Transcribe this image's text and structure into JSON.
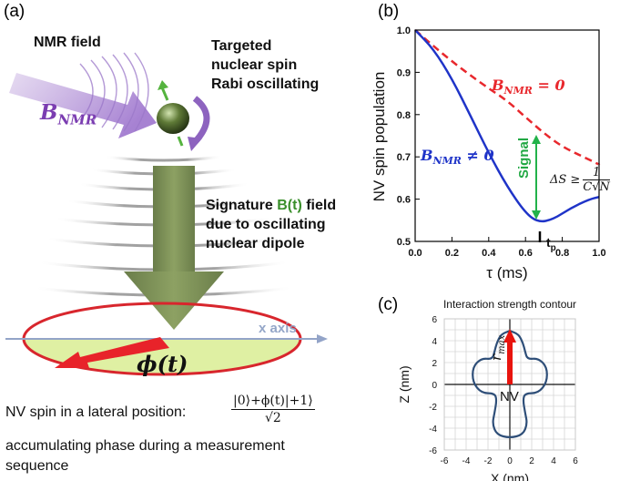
{
  "panels": {
    "a": {
      "label": "(a)",
      "nmr_field": "NMR field",
      "b_nmr": "B",
      "b_nmr_sub": "NMR",
      "target_line1": "Targeted",
      "target_line2": "nuclear spin",
      "target_line3": "Rabi oscillating",
      "sig_line1_pre": "Signature ",
      "sig_line1_b": "B(t)",
      "sig_line1_post": " field",
      "sig_line2": "due to oscillating",
      "sig_line3": "nuclear dipole",
      "x_axis": "x axis",
      "phase": "ϕ(t)",
      "caption_line1": "NV spin  in a lateral position:",
      "state_formula": "|0⟩+ϕ(t)|+1⟩",
      "state_denom": "√2",
      "caption_line2": "accumulating phase  during a measurement",
      "caption_line3": "sequence"
    },
    "b": {
      "label": "(b)",
      "label_zero": "B",
      "label_zero_sub": "NMR",
      "label_zero_rel": " = 0",
      "label_nonzero": "B",
      "label_nonzero_sub": "NMR",
      "label_nonzero_rel": " ≠ 0",
      "signal": "Signal",
      "delta_s": "ΔS ≥",
      "delta_num": "1",
      "delta_den": "C√N",
      "tp": "t",
      "tp_sub": "p"
    },
    "c": {
      "label": "(c)",
      "r_max": "r",
      "r_max_sub": "max",
      "nv": "NV"
    }
  },
  "chart_data": [
    {
      "type": "line",
      "xlabel": "τ (ms)",
      "ylabel": "NV spin population",
      "xlim": [
        0.0,
        1.0
      ],
      "ylim": [
        0.5,
        1.0
      ],
      "xticks": [
        "0.0",
        "0.2",
        "0.4",
        "0.6",
        "0.8",
        "1.0"
      ],
      "yticks": [
        "0.5",
        "0.6",
        "0.7",
        "0.8",
        "0.9",
        "1.0"
      ],
      "grid": false,
      "series": [
        {
          "name": "B_NMR = 0",
          "color": "#e8282d",
          "dash": true,
          "x": [
            0.0,
            0.1,
            0.2,
            0.3,
            0.4,
            0.5,
            0.6,
            0.7,
            0.8,
            0.9,
            1.0
          ],
          "y": [
            1.0,
            0.962,
            0.926,
            0.893,
            0.862,
            0.833,
            0.794,
            0.756,
            0.724,
            0.703,
            0.682
          ]
        },
        {
          "name": "B_NMR ≠ 0",
          "color": "#1f34c8",
          "dash": false,
          "x": [
            0.0,
            0.1,
            0.2,
            0.3,
            0.4,
            0.5,
            0.6,
            0.67,
            0.75,
            0.85,
            0.95,
            1.0
          ],
          "y": [
            1.0,
            0.955,
            0.885,
            0.798,
            0.709,
            0.63,
            0.567,
            0.545,
            0.552,
            0.58,
            0.6,
            0.605
          ]
        }
      ]
    },
    {
      "type": "line",
      "title": "Interaction strength contour",
      "xlabel": "X (nm)",
      "ylabel": "Z (nm)",
      "xlim": [
        -6,
        6
      ],
      "ylim": [
        -6,
        6
      ],
      "xticks": [
        "-6",
        "-4",
        "-2",
        "0",
        "2",
        "4",
        "6"
      ],
      "yticks": [
        "-6",
        "-4",
        "-2",
        "0",
        "2",
        "4",
        "6"
      ],
      "grid": true,
      "series": [
        {
          "color": "#2e4e78",
          "x": [
            0.0,
            0.8,
            1.2,
            1.4,
            1.6,
            2.6,
            3.4,
            3.4,
            2.6,
            1.4,
            1.2,
            1.4,
            1.6,
            1.2,
            0.0,
            -1.2,
            -1.6,
            -1.4,
            -1.2,
            -1.4,
            -2.6,
            -3.4,
            -3.4,
            -2.6,
            -1.6,
            -1.4,
            -1.2,
            -0.8,
            0.0
          ],
          "y": [
            4.9,
            4.6,
            3.8,
            3.0,
            2.3,
            2.4,
            1.6,
            0.2,
            -0.8,
            -0.8,
            -1.4,
            -2.6,
            -3.6,
            -4.6,
            -4.9,
            -4.6,
            -3.6,
            -2.6,
            -1.4,
            -0.8,
            -0.8,
            0.2,
            1.6,
            2.4,
            2.3,
            3.0,
            3.8,
            4.6,
            4.9
          ]
        }
      ]
    }
  ]
}
